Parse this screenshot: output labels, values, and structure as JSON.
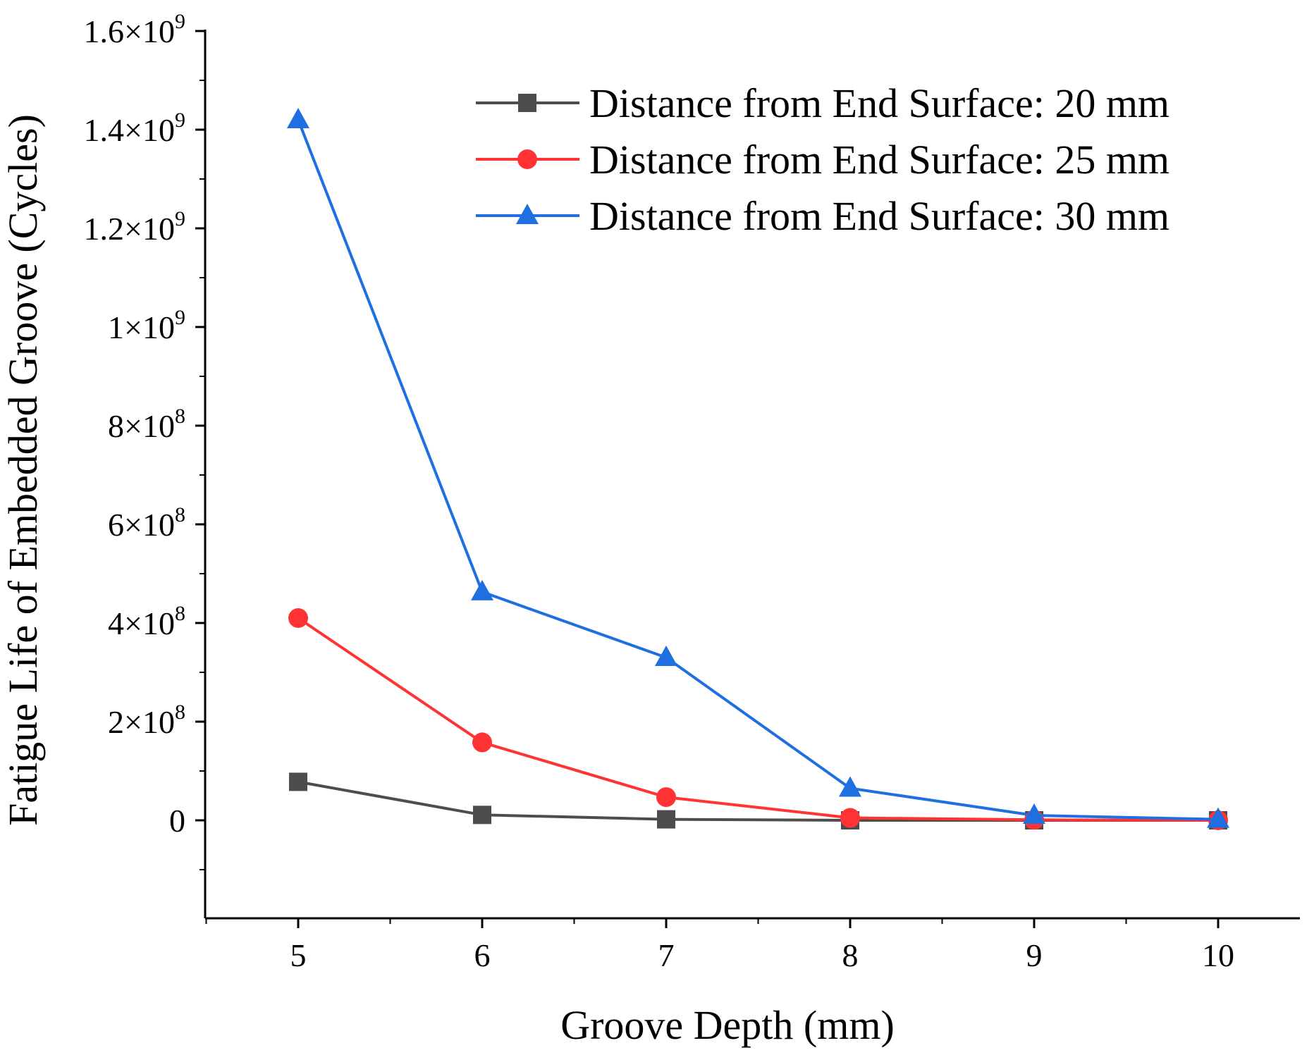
{
  "chart_data": {
    "type": "line",
    "title": "",
    "xlabel": "Groove Depth (mm)",
    "ylabel": "Fatigue Life of Embedded Groove (Cycles)",
    "x": [
      5,
      6,
      7,
      8,
      9,
      10
    ],
    "xlim": [
      4.5,
      10.5
    ],
    "ylim": [
      -200000000,
      1650000000
    ],
    "x_ticks": [
      {
        "value": 5,
        "label": "5"
      },
      {
        "value": 6,
        "label": "6"
      },
      {
        "value": 7,
        "label": "7"
      },
      {
        "value": 8,
        "label": "8"
      },
      {
        "value": 9,
        "label": "9"
      },
      {
        "value": 10,
        "label": "10"
      }
    ],
    "y_ticks": [
      {
        "value": 0,
        "mantissa": "0",
        "exponent": ""
      },
      {
        "value": 200000000,
        "mantissa": "2×10",
        "exponent": "8"
      },
      {
        "value": 400000000,
        "mantissa": "4×10",
        "exponent": "8"
      },
      {
        "value": 600000000,
        "mantissa": "6×10",
        "exponent": "8"
      },
      {
        "value": 800000000,
        "mantissa": "8×10",
        "exponent": "8"
      },
      {
        "value": 1000000000,
        "mantissa": "1×10",
        "exponent": "9"
      },
      {
        "value": 1200000000,
        "mantissa": "1.2×10",
        "exponent": "9"
      },
      {
        "value": 1400000000,
        "mantissa": "1.4×10",
        "exponent": "9"
      },
      {
        "value": 1600000000,
        "mantissa": "1.6×10",
        "exponent": "9"
      }
    ],
    "grid": false,
    "legend_position": "top-right",
    "series": [
      {
        "name": "Distance from End Surface: 20 mm",
        "color": "#4d4d4d",
        "marker": "square",
        "values": [
          78000000,
          11000000,
          2000000,
          0,
          0,
          0
        ]
      },
      {
        "name": "Distance from End Surface: 25 mm",
        "color": "#ff3333",
        "marker": "circle",
        "values": [
          410000000,
          158000000,
          47000000,
          5000000,
          1000000,
          0
        ]
      },
      {
        "name": "Distance from End Surface: 30 mm",
        "color": "#1f6fe0",
        "marker": "triangle",
        "values": [
          1420000000,
          463000000,
          330000000,
          65000000,
          10000000,
          2000000
        ]
      }
    ]
  }
}
